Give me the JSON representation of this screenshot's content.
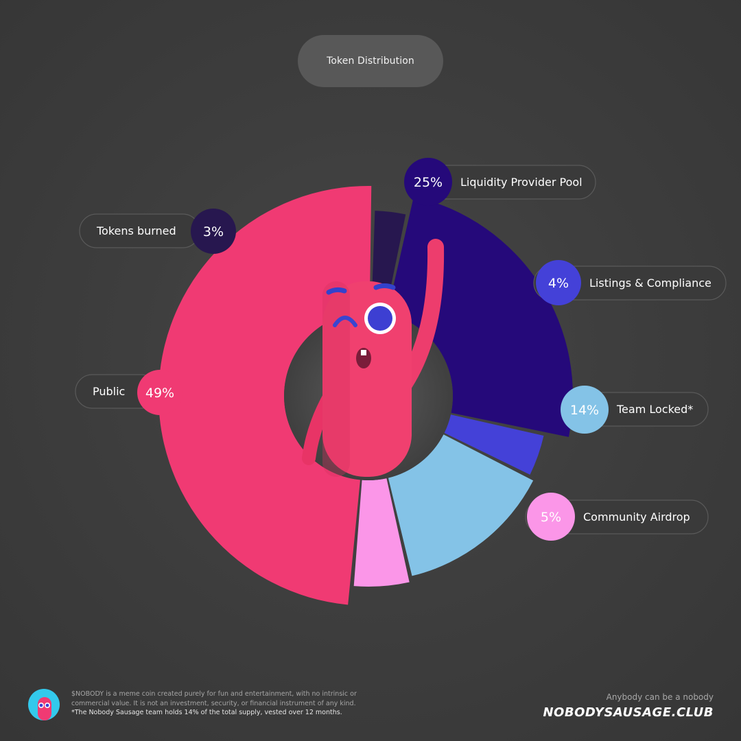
{
  "title": "Token Distribution",
  "chart_data": {
    "type": "pie",
    "title": "Token Distribution",
    "slices": [
      {
        "label": "Public",
        "value": 49,
        "display": "49%",
        "color": "#f03a73"
      },
      {
        "label": "Tokens burned",
        "value": 3,
        "display": "3%",
        "color": "#27174f"
      },
      {
        "label": "Liquidity Provider Pool",
        "value": 25,
        "display": "25%",
        "color": "#25097a"
      },
      {
        "label": "Listings & Compliance",
        "value": 4,
        "display": "4%",
        "color": "#4441d8"
      },
      {
        "label": "Team Locked*",
        "value": 14,
        "display": "14%",
        "color": "#84c3e7"
      },
      {
        "label": "Community Airdrop",
        "value": 5,
        "display": "5%",
        "color": "#fb96e8"
      }
    ]
  },
  "footer": {
    "disclaimer": "$NOBODY is a meme coin created purely for fun and entertainment, with no intrinsic or commercial value. It is not an investment, security, or financial instrument of any kind.",
    "note": "*The Nobody Sausage team holds 14% of the total supply, vested over 12 months.",
    "tagline": "Anybody can be a nobody",
    "site": "NOBODYSAUSAGE.CLUB"
  }
}
